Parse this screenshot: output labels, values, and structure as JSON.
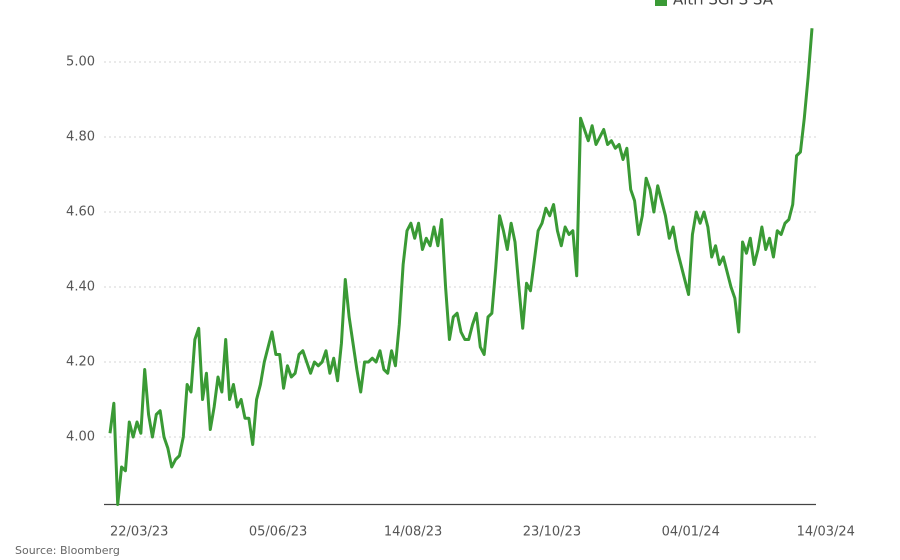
{
  "chart_data": {
    "type": "line",
    "source": "Source: Bloomberg",
    "legend": "top-right",
    "grid": true,
    "ylim": [
      3.82,
      5.1
    ],
    "yticks": [
      {
        "value": 4,
        "label": "4.00"
      },
      {
        "value": 4.2,
        "label": "4.20"
      },
      {
        "value": 4.4,
        "label": "4.40"
      },
      {
        "value": 4.6,
        "label": "4.60"
      },
      {
        "value": 4.8,
        "label": "4.80"
      },
      {
        "value": 5,
        "label": "5.00"
      }
    ],
    "categories": [
      "22/03/23",
      null,
      null,
      null,
      null,
      null,
      null,
      null,
      null,
      null,
      null,
      null,
      null,
      null,
      null,
      null,
      null,
      null,
      null,
      null,
      null,
      null,
      null,
      null,
      null,
      null,
      null,
      null,
      null,
      null,
      null,
      null,
      null,
      null,
      null,
      null,
      "05/06/23",
      null,
      null,
      null,
      null,
      null,
      null,
      null,
      null,
      null,
      null,
      null,
      null,
      null,
      null,
      null,
      null,
      null,
      null,
      null,
      null,
      null,
      null,
      null,
      null,
      null,
      null,
      null,
      null,
      null,
      null,
      null,
      null,
      null,
      null,
      "14/08/23",
      null,
      null,
      null,
      null,
      null,
      null,
      null,
      null,
      null,
      null,
      null,
      null,
      null,
      null,
      null,
      null,
      null,
      null,
      null,
      null,
      null,
      null,
      null,
      null,
      null,
      null,
      null,
      null,
      null,
      null,
      null,
      null,
      null,
      null,
      null,
      "23/10/23",
      null,
      null,
      null,
      null,
      null,
      null,
      null,
      null,
      null,
      null,
      null,
      null,
      null,
      null,
      null,
      null,
      null,
      null,
      null,
      null,
      null,
      null,
      null,
      null,
      null,
      null,
      null,
      null,
      null,
      null,
      null,
      null,
      null,
      null,
      null,
      "04/01/24",
      null,
      null,
      null,
      null,
      null,
      null,
      null,
      null,
      null,
      null,
      null,
      null,
      null,
      null,
      null,
      null,
      null,
      null,
      null,
      null,
      null,
      null,
      null,
      null,
      null,
      null,
      null,
      null,
      null,
      null,
      null,
      null,
      null,
      null,
      "14/03/24",
      null,
      null,
      null,
      null
    ],
    "series": [
      {
        "name": "Altri SGPS SA",
        "color": "#3a9a35",
        "values": [
          4.01,
          4.09,
          3.82,
          3.92,
          3.91,
          4.04,
          4.0,
          4.04,
          4.01,
          4.18,
          4.06,
          4.0,
          4.06,
          4.07,
          4.0,
          3.97,
          3.92,
          3.94,
          3.95,
          4.0,
          4.14,
          4.12,
          4.26,
          4.29,
          4.1,
          4.17,
          4.02,
          4.08,
          4.16,
          4.12,
          4.26,
          4.1,
          4.14,
          4.08,
          4.1,
          4.05,
          4.05,
          3.98,
          4.1,
          4.14,
          4.2,
          4.24,
          4.28,
          4.22,
          4.22,
          4.13,
          4.19,
          4.16,
          4.17,
          4.22,
          4.23,
          4.2,
          4.17,
          4.2,
          4.19,
          4.2,
          4.23,
          4.17,
          4.21,
          4.15,
          4.25,
          4.42,
          4.32,
          4.25,
          4.18,
          4.12,
          4.2,
          4.2,
          4.21,
          4.2,
          4.23,
          4.18,
          4.17,
          4.23,
          4.19,
          4.3,
          4.46,
          4.55,
          4.57,
          4.53,
          4.57,
          4.5,
          4.53,
          4.51,
          4.56,
          4.51,
          4.58,
          4.4,
          4.26,
          4.32,
          4.33,
          4.28,
          4.26,
          4.26,
          4.3,
          4.33,
          4.24,
          4.22,
          4.32,
          4.33,
          4.45,
          4.59,
          4.55,
          4.5,
          4.57,
          4.52,
          4.4,
          4.29,
          4.41,
          4.39,
          4.47,
          4.55,
          4.57,
          4.61,
          4.59,
          4.62,
          4.55,
          4.51,
          4.56,
          4.54,
          4.55,
          4.43,
          4.85,
          4.82,
          4.79,
          4.83,
          4.78,
          4.8,
          4.82,
          4.78,
          4.79,
          4.77,
          4.78,
          4.74,
          4.77,
          4.66,
          4.63,
          4.54,
          4.59,
          4.69,
          4.66,
          4.6,
          4.67,
          4.63,
          4.59,
          4.53,
          4.56,
          4.5,
          4.46,
          4.42,
          4.38,
          4.54,
          4.6,
          4.57,
          4.6,
          4.56,
          4.48,
          4.51,
          4.46,
          4.48,
          4.44,
          4.4,
          4.37,
          4.28,
          4.52,
          4.49,
          4.53,
          4.46,
          4.5,
          4.56,
          4.5,
          4.53,
          4.48,
          4.55,
          4.54,
          4.57,
          4.58,
          4.62,
          4.75,
          4.76,
          4.85,
          4.96,
          5.09
        ]
      }
    ]
  }
}
